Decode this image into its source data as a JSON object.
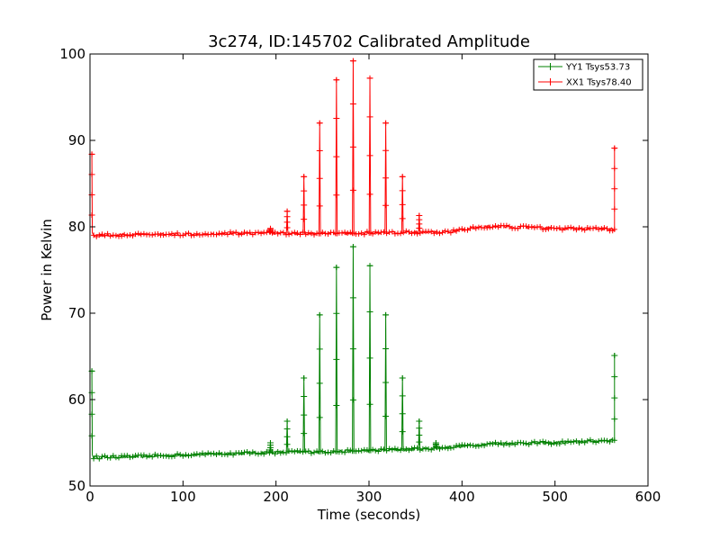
{
  "chart_data": {
    "type": "line",
    "title": "3c274, ID:145702 Calibrated Amplitude",
    "xlabel": "Time (seconds)",
    "ylabel": "Power in Kelvin",
    "xlim": [
      0,
      600
    ],
    "ylim": [
      50,
      100
    ],
    "xticks": [
      "0",
      "100",
      "200",
      "300",
      "400",
      "500",
      "600"
    ],
    "yticks": [
      "50",
      "60",
      "70",
      "80",
      "90",
      "100"
    ],
    "grid": false,
    "legend_position": "top-right",
    "baselines": {
      "XX1": [
        [
          0,
          79.0
        ],
        [
          70,
          79.1
        ],
        [
          190,
          79.3
        ],
        [
          250,
          79.2
        ],
        [
          380,
          79.4
        ],
        [
          400,
          79.6
        ],
        [
          420,
          80.0
        ],
        [
          450,
          80.0
        ],
        [
          500,
          79.8
        ],
        [
          565,
          79.7
        ]
      ],
      "YY1": [
        [
          0,
          53.3
        ],
        [
          50,
          53.4
        ],
        [
          100,
          53.6
        ],
        [
          200,
          53.9
        ],
        [
          270,
          54.0
        ],
        [
          300,
          54.1
        ],
        [
          360,
          54.3
        ],
        [
          400,
          54.6
        ],
        [
          430,
          54.9
        ],
        [
          500,
          55.0
        ],
        [
          565,
          55.3
        ]
      ]
    },
    "series": [
      {
        "name": "YY1 Tsys53.73",
        "color": "#008000",
        "peaks": [
          {
            "x": 2,
            "y": 63.3
          },
          {
            "x": 194,
            "y": 55.0
          },
          {
            "x": 212,
            "y": 57.5
          },
          {
            "x": 230,
            "y": 62.5
          },
          {
            "x": 247,
            "y": 69.8
          },
          {
            "x": 265,
            "y": 75.3
          },
          {
            "x": 283,
            "y": 77.7
          },
          {
            "x": 301,
            "y": 75.5
          },
          {
            "x": 318,
            "y": 69.8
          },
          {
            "x": 336,
            "y": 62.5
          },
          {
            "x": 354,
            "y": 57.5
          },
          {
            "x": 372,
            "y": 55.0
          },
          {
            "x": 564,
            "y": 65.1
          }
        ]
      },
      {
        "name": "XX1 Tsys78.40",
        "color": "#ff0000",
        "peaks": [
          {
            "x": 2,
            "y": 88.4
          },
          {
            "x": 194,
            "y": 79.8
          },
          {
            "x": 212,
            "y": 81.8
          },
          {
            "x": 230,
            "y": 85.8
          },
          {
            "x": 247,
            "y": 92.0
          },
          {
            "x": 265,
            "y": 97.0
          },
          {
            "x": 283,
            "y": 99.2
          },
          {
            "x": 301,
            "y": 97.2
          },
          {
            "x": 318,
            "y": 92.0
          },
          {
            "x": 336,
            "y": 85.8
          },
          {
            "x": 354,
            "y": 81.3
          },
          {
            "x": 564,
            "y": 89.1
          }
        ]
      }
    ]
  }
}
